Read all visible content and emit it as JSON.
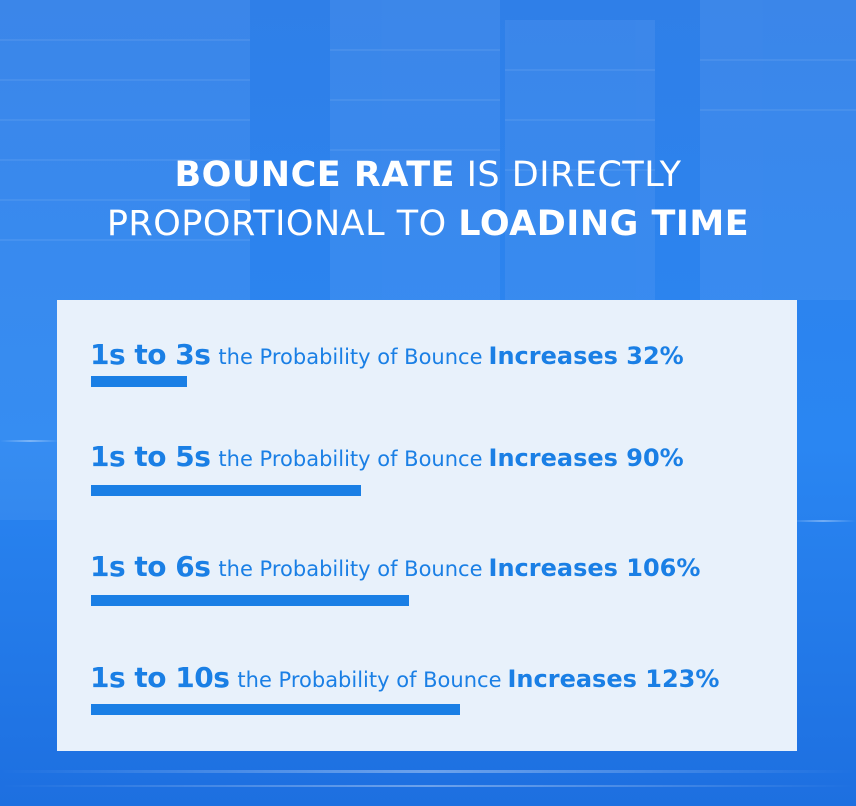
{
  "title": {
    "line1_bold": "BOUNCE RATE",
    "line1_normal": " IS DIRECTLY",
    "line2_normal": "PROPORTIONAL TO ",
    "line2_bold": "LOADING TIME"
  },
  "colors": {
    "accent": "#1a7fe5",
    "panel": "#e8f1fb",
    "background": "#2e86f0"
  },
  "chart_data": {
    "type": "bar",
    "orientation": "horizontal",
    "rows": [
      {
        "range": "1s to 3s",
        "phrase": "the Probability of Bounce",
        "result": "Increases 32%",
        "value": 32
      },
      {
        "range": "1s to 5s",
        "phrase": "the Probability of Bounce",
        "result": "Increases 90%",
        "value": 90
      },
      {
        "range": "1s to 6s",
        "phrase": "the Probability of Bounce",
        "result": "Increases 106%",
        "value": 106
      },
      {
        "range": "1s to 10s",
        "phrase": "the Probability of Bounce",
        "result": "Increases 123%",
        "value": 123
      }
    ]
  }
}
